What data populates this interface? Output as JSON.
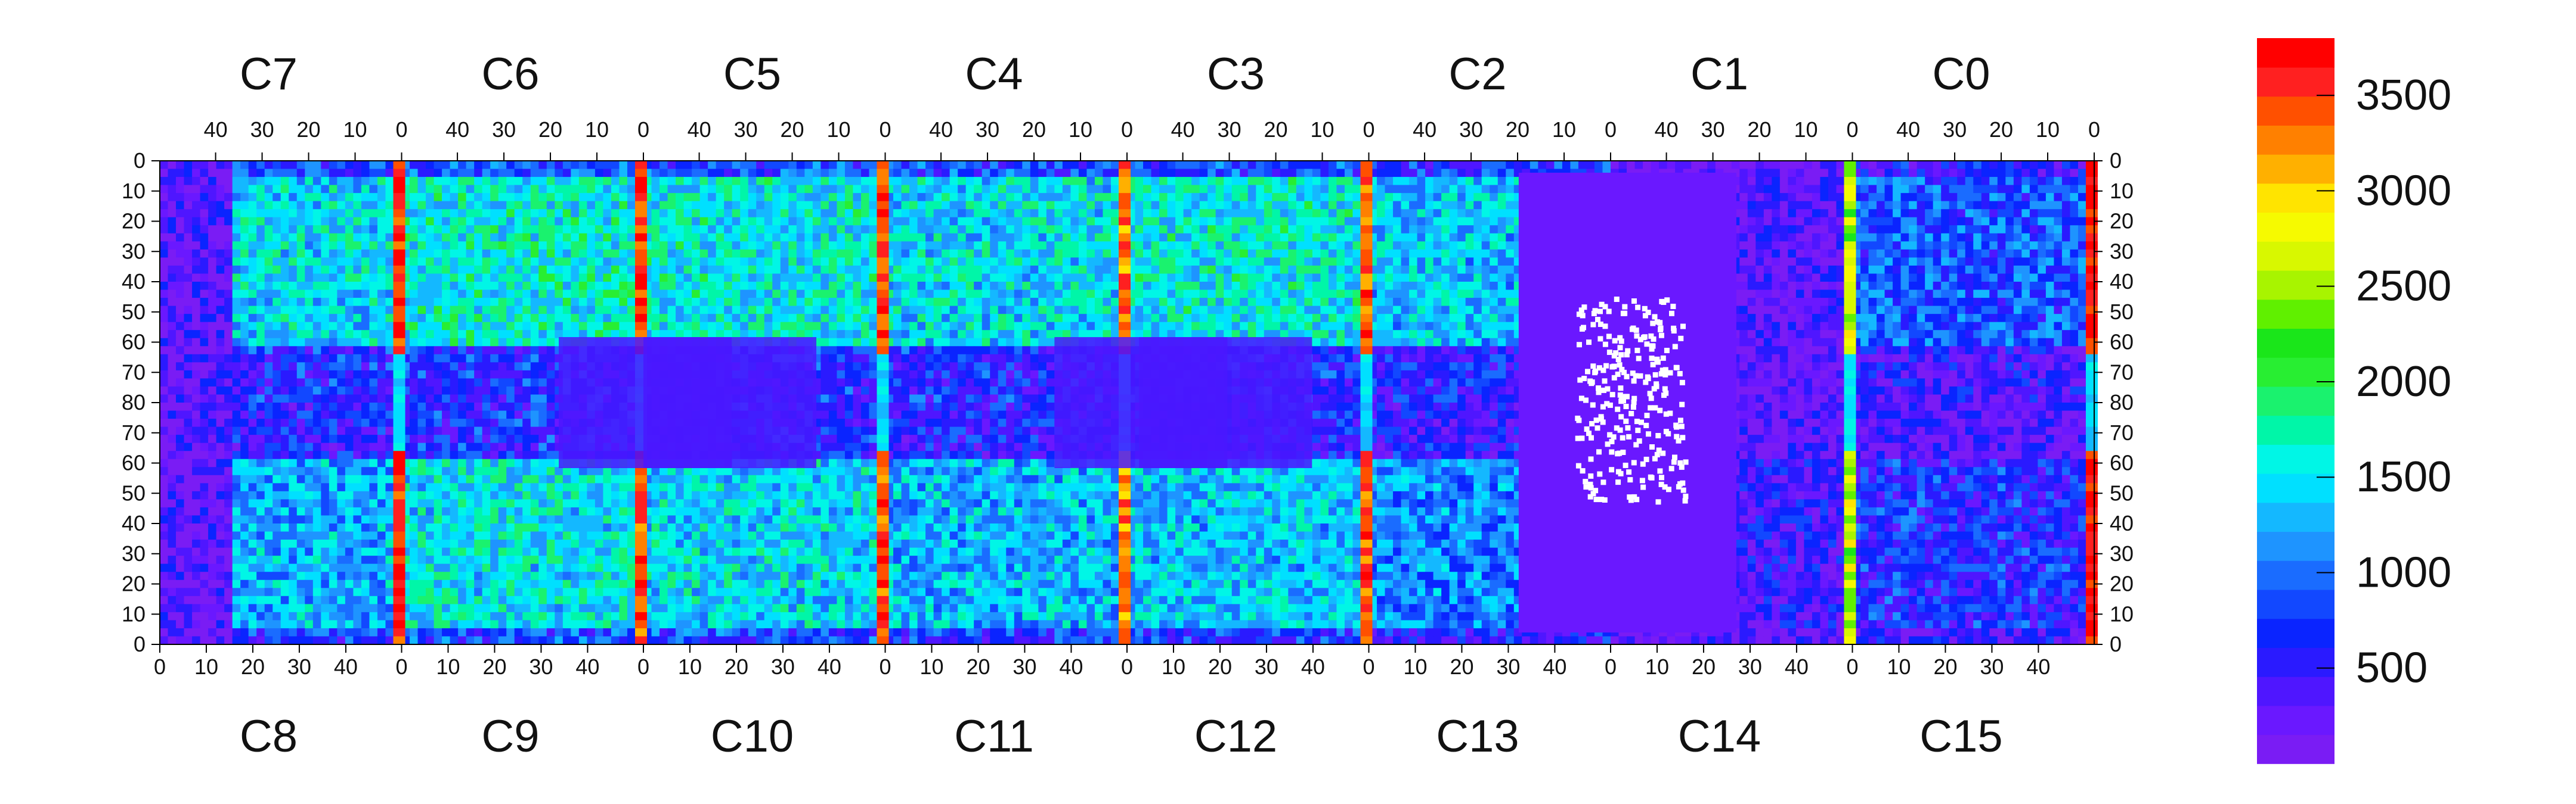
{
  "chart_data": {
    "type": "heatmap",
    "title": "",
    "top_chip_labels": [
      "C7",
      "C6",
      "C5",
      "C4",
      "C3",
      "C2",
      "C1",
      "C0"
    ],
    "bottom_chip_labels": [
      "C8",
      "C9",
      "C10",
      "C11",
      "C12",
      "C13",
      "C14",
      "C15"
    ],
    "top_x_tick_labels": [
      "40",
      "30",
      "20",
      "10",
      "0"
    ],
    "bottom_x_tick_labels": [
      "0",
      "10",
      "20",
      "30",
      "40"
    ],
    "y_tick_labels": [
      "0",
      "10",
      "20",
      "30",
      "40",
      "50",
      "60",
      "70",
      "80",
      "70",
      "60",
      "50",
      "40",
      "30",
      "20",
      "10",
      "0"
    ],
    "zlim": [
      0,
      3800
    ],
    "colorbar_ticks": [
      500,
      1000,
      1500,
      2000,
      2500,
      3000,
      3500
    ],
    "colorbar_palette": [
      "#7a1cf4",
      "#6a18ff",
      "#4f16ff",
      "#2a1aff",
      "#0a24ff",
      "#1248ff",
      "#1a6cff",
      "#1e94ff",
      "#14b8ff",
      "#00e0ff",
      "#00f6e6",
      "#00f6a8",
      "#1af26e",
      "#28ee32",
      "#1ae61a",
      "#60f000",
      "#a8f400",
      "#d8f800",
      "#f6fa00",
      "#ffe400",
      "#ffb000",
      "#ff8000",
      "#ff5000",
      "#ff2020",
      "#ff0000"
    ],
    "chips": [
      {
        "label": "C7",
        "position": "top",
        "mean": 1450
      },
      {
        "label": "C6",
        "position": "top",
        "mean": 1600
      },
      {
        "label": "C5",
        "position": "top",
        "mean": 1550
      },
      {
        "label": "C4",
        "position": "top",
        "mean": 1450
      },
      {
        "label": "C3",
        "position": "top",
        "mean": 1550
      },
      {
        "label": "C2",
        "position": "top",
        "mean": 1350
      },
      {
        "label": "C1",
        "position": "top",
        "mean": 300
      },
      {
        "label": "C0",
        "position": "top",
        "mean": 900
      },
      {
        "label": "C8",
        "position": "bottom",
        "mean": 1250
      },
      {
        "label": "C9",
        "position": "bottom",
        "mean": 1500
      },
      {
        "label": "C10",
        "position": "bottom",
        "mean": 1450
      },
      {
        "label": "C11",
        "position": "bottom",
        "mean": 1300
      },
      {
        "label": "C12",
        "position": "bottom",
        "mean": 1350
      },
      {
        "label": "C13",
        "position": "bottom",
        "mean": 1100
      },
      {
        "label": "C14",
        "position": "bottom",
        "mean": 450
      },
      {
        "label": "C15",
        "position": "bottom",
        "mean": 650
      }
    ],
    "hot_columns": [
      {
        "between": "C7|C6",
        "value": 3600
      },
      {
        "between": "C6|C5",
        "value": 3500
      },
      {
        "between": "C5|C4",
        "value": 3450
      },
      {
        "between": "C4|C3",
        "value": 3300
      },
      {
        "between": "C3|C2",
        "value": 3400
      },
      {
        "between": "C1|C0",
        "value": 2600
      },
      {
        "between": "C0|edge",
        "value": 3700
      }
    ],
    "grid": false,
    "legend": "right colorbar"
  }
}
